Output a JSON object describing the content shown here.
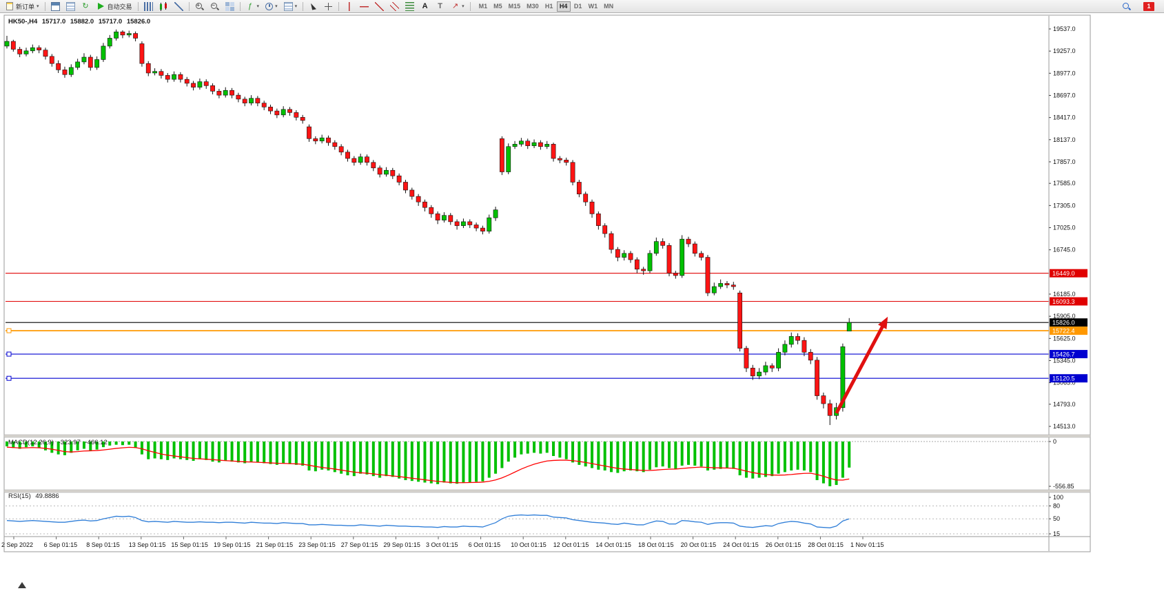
{
  "toolbar": {
    "new_order_label": "新订单",
    "autotrading_label": "自动交易",
    "timeframes": [
      "M1",
      "M5",
      "M15",
      "M30",
      "H1",
      "H4",
      "D1",
      "W1",
      "MN"
    ],
    "active_timeframe": "H4",
    "notification_count": "1"
  },
  "icons": {
    "refresh_glyph": "↻",
    "function_glyph": "ƒ",
    "text_glyph": "A",
    "label_glyph": "T",
    "arrows_glyph": "↗",
    "caret_glyph": "▾",
    "zoom_in_sign": "+",
    "zoom_out_sign": "−"
  },
  "chart": {
    "symbol_period": "HK50-,H4",
    "open": "15717.0",
    "high": "15882.0",
    "low": "15717.0",
    "close": "15826.0"
  },
  "indicators": {
    "macd_name": "MACD(12,26,9)",
    "macd_value": "-323.97",
    "macd_signal_value": "-466.12",
    "rsi_name": "RSI(15)",
    "rsi_value": "49.8886"
  },
  "axes": {
    "price_ticks": [
      19537.0,
      19257.0,
      18977.0,
      18697.0,
      18417.0,
      18137.0,
      17857.0,
      17585.0,
      17305.0,
      17025.0,
      16745.0,
      16185.0,
      15905.0,
      15625.0,
      15345.0,
      15065.0,
      14793.0,
      14513.0
    ],
    "macd_ticks": [
      0,
      -556.85
    ],
    "rsi_ticks": [
      100,
      80,
      50,
      15
    ],
    "time_labels": [
      "2 Sep 2022",
      "6 Sep 01:15",
      "8 Sep 01:15",
      "13 Sep 01:15",
      "15 Sep 01:15",
      "19 Sep 01:15",
      "21 Sep 01:15",
      "23 Sep 01:15",
      "27 Sep 01:15",
      "29 Sep 01:15",
      "3 Oct 01:15",
      "6 Oct 01:15",
      "10 Oct 01:15",
      "12 Oct 01:15",
      "14 Oct 01:15",
      "18 Oct 01:15",
      "20 Oct 01:15",
      "24 Oct 01:15",
      "26 Oct 01:15",
      "28 Oct 01:15",
      "1 Nov 01:15"
    ]
  },
  "levels": [
    {
      "value": 16449.0,
      "label": "16449.0",
      "color": "#e00000"
    },
    {
      "value": 16093.3,
      "label": "16093.3",
      "color": "#e00000"
    },
    {
      "value": 15826.0,
      "label": "15826.0",
      "color": "#000000"
    },
    {
      "value": 15722.4,
      "label": "15722.4",
      "color": "#ff9800"
    },
    {
      "value": 15426.7,
      "label": "15426.7",
      "color": "#0000d0"
    },
    {
      "value": 15120.5,
      "label": "15120.5",
      "color": "#0000d0"
    }
  ],
  "colors": {
    "bull": "#00c000",
    "bear": "#ff1414",
    "wick": "#111111",
    "macd_hist": "#00c000",
    "macd_signal": "#ff0000",
    "rsi_line": "#2f7ed8",
    "level_red": "#e00000",
    "level_blue": "#0000d0",
    "level_orange": "#ff9800",
    "arrow": "#e01010"
  },
  "chart_data": {
    "type": "candlestick",
    "symbol": "HK50-",
    "period": "H4",
    "price_range": [
      14513.0,
      19537.0
    ],
    "candles_ohlc": [
      [
        19320,
        19450,
        19290,
        19380
      ],
      [
        19380,
        19400,
        19250,
        19280
      ],
      [
        19280,
        19310,
        19180,
        19220
      ],
      [
        19220,
        19300,
        19190,
        19260
      ],
      [
        19260,
        19340,
        19230,
        19300
      ],
      [
        19300,
        19330,
        19230,
        19270
      ],
      [
        19270,
        19300,
        19150,
        19190
      ],
      [
        19190,
        19220,
        19060,
        19100
      ],
      [
        19100,
        19140,
        18980,
        19020
      ],
      [
        19020,
        19060,
        18920,
        18960
      ],
      [
        18960,
        19090,
        18930,
        19050
      ],
      [
        19050,
        19160,
        19020,
        19120
      ],
      [
        19120,
        19230,
        19090,
        19180
      ],
      [
        19180,
        19210,
        19010,
        19050
      ],
      [
        19050,
        19190,
        19020,
        19150
      ],
      [
        19150,
        19360,
        19120,
        19320
      ],
      [
        19320,
        19460,
        19290,
        19420
      ],
      [
        19420,
        19530,
        19390,
        19500
      ],
      [
        19500,
        19520,
        19420,
        19460
      ],
      [
        19460,
        19515,
        19430,
        19480
      ],
      [
        19480,
        19505,
        19380,
        19420
      ],
      [
        19350,
        19380,
        19060,
        19100
      ],
      [
        19100,
        19130,
        18940,
        18980
      ],
      [
        18980,
        19040,
        18950,
        19000
      ],
      [
        19000,
        19030,
        18910,
        18950
      ],
      [
        18950,
        18980,
        18860,
        18900
      ],
      [
        18900,
        19000,
        18870,
        18960
      ],
      [
        18960,
        18990,
        18860,
        18900
      ],
      [
        18900,
        18930,
        18810,
        18850
      ],
      [
        18850,
        18880,
        18760,
        18800
      ],
      [
        18800,
        18910,
        18770,
        18870
      ],
      [
        18870,
        18900,
        18780,
        18820
      ],
      [
        18820,
        18850,
        18710,
        18750
      ],
      [
        18750,
        18780,
        18660,
        18700
      ],
      [
        18700,
        18800,
        18670,
        18760
      ],
      [
        18760,
        18790,
        18660,
        18700
      ],
      [
        18700,
        18730,
        18610,
        18650
      ],
      [
        18650,
        18680,
        18560,
        18600
      ],
      [
        18600,
        18700,
        18570,
        18660
      ],
      [
        18660,
        18690,
        18560,
        18600
      ],
      [
        18600,
        18630,
        18510,
        18550
      ],
      [
        18550,
        18580,
        18460,
        18500
      ],
      [
        18500,
        18530,
        18410,
        18450
      ],
      [
        18450,
        18560,
        18420,
        18520
      ],
      [
        18520,
        18550,
        18440,
        18480
      ],
      [
        18480,
        18510,
        18380,
        18420
      ],
      [
        18420,
        18450,
        18340,
        18380
      ],
      [
        18300,
        18330,
        18110,
        18150
      ],
      [
        18150,
        18180,
        18080,
        18120
      ],
      [
        18120,
        18200,
        18090,
        18160
      ],
      [
        18160,
        18190,
        18060,
        18100
      ],
      [
        18100,
        18130,
        18010,
        18050
      ],
      [
        18050,
        18080,
        17940,
        17980
      ],
      [
        17980,
        18010,
        17860,
        17900
      ],
      [
        17900,
        17930,
        17810,
        17850
      ],
      [
        17850,
        17960,
        17820,
        17920
      ],
      [
        17920,
        17950,
        17810,
        17850
      ],
      [
        17850,
        17880,
        17740,
        17780
      ],
      [
        17780,
        17810,
        17660,
        17700
      ],
      [
        17700,
        17790,
        17670,
        17750
      ],
      [
        17750,
        17780,
        17640,
        17680
      ],
      [
        17680,
        17710,
        17560,
        17600
      ],
      [
        17600,
        17630,
        17460,
        17500
      ],
      [
        17500,
        17530,
        17380,
        17420
      ],
      [
        17420,
        17450,
        17300,
        17350
      ],
      [
        17350,
        17380,
        17230,
        17280
      ],
      [
        17280,
        17310,
        17150,
        17200
      ],
      [
        17200,
        17230,
        17070,
        17120
      ],
      [
        17120,
        17220,
        17090,
        17180
      ],
      [
        17180,
        17210,
        17060,
        17100
      ],
      [
        17100,
        17130,
        17000,
        17050
      ],
      [
        17050,
        17140,
        17020,
        17100
      ],
      [
        17100,
        17130,
        17020,
        17060
      ],
      [
        17060,
        17090,
        16980,
        17020
      ],
      [
        17020,
        17050,
        16940,
        16980
      ],
      [
        16980,
        17190,
        16950,
        17150
      ],
      [
        17150,
        17290,
        17110,
        17250
      ],
      [
        18150,
        18180,
        17690,
        17730
      ],
      [
        17730,
        18090,
        17700,
        18050
      ],
      [
        18050,
        18120,
        18020,
        18080
      ],
      [
        18080,
        18160,
        18050,
        18120
      ],
      [
        18120,
        18150,
        18020,
        18060
      ],
      [
        18060,
        18140,
        18030,
        18100
      ],
      [
        18100,
        18130,
        18010,
        18050
      ],
      [
        18050,
        18120,
        18020,
        18080
      ],
      [
        18080,
        18100,
        17860,
        17900
      ],
      [
        17900,
        17930,
        17840,
        17880
      ],
      [
        17880,
        17910,
        17810,
        17850
      ],
      [
        17850,
        17880,
        17560,
        17600
      ],
      [
        17600,
        17630,
        17410,
        17450
      ],
      [
        17450,
        17480,
        17300,
        17350
      ],
      [
        17350,
        17380,
        17150,
        17200
      ],
      [
        17200,
        17230,
        17000,
        17050
      ],
      [
        17050,
        17080,
        16900,
        16950
      ],
      [
        16950,
        16980,
        16700,
        16750
      ],
      [
        16750,
        16780,
        16600,
        16650
      ],
      [
        16650,
        16740,
        16610,
        16700
      ],
      [
        16700,
        16730,
        16580,
        16620
      ],
      [
        16620,
        16650,
        16450,
        16500
      ],
      [
        16500,
        16530,
        16430,
        16480
      ],
      [
        16480,
        16740,
        16450,
        16700
      ],
      [
        16700,
        16900,
        16670,
        16850
      ],
      [
        16850,
        16890,
        16760,
        16800
      ],
      [
        16800,
        16830,
        16410,
        16450
      ],
      [
        16450,
        16480,
        16380,
        16420
      ],
      [
        16420,
        16930,
        16390,
        16880
      ],
      [
        16880,
        16910,
        16780,
        16820
      ],
      [
        16820,
        16850,
        16660,
        16700
      ],
      [
        16700,
        16730,
        16610,
        16650
      ],
      [
        16650,
        16680,
        16160,
        16200
      ],
      [
        16200,
        16330,
        16170,
        16280
      ],
      [
        16280,
        16370,
        16250,
        16320
      ],
      [
        16320,
        16350,
        16260,
        16300
      ],
      [
        16300,
        16340,
        16240,
        16280
      ],
      [
        16200,
        16230,
        15460,
        15500
      ],
      [
        15500,
        15530,
        15200,
        15250
      ],
      [
        15250,
        15290,
        15100,
        15150
      ],
      [
        15150,
        15250,
        15110,
        15200
      ],
      [
        15200,
        15330,
        15160,
        15280
      ],
      [
        15280,
        15310,
        15200,
        15250
      ],
      [
        15250,
        15500,
        15210,
        15450
      ],
      [
        15450,
        15600,
        15410,
        15550
      ],
      [
        15550,
        15700,
        15510,
        15650
      ],
      [
        15650,
        15690,
        15550,
        15600
      ],
      [
        15600,
        15640,
        15400,
        15450
      ],
      [
        15450,
        15490,
        15300,
        15350
      ],
      [
        15350,
        15390,
        14850,
        14900
      ],
      [
        14900,
        14940,
        14740,
        14800
      ],
      [
        14800,
        14850,
        14530,
        14650
      ],
      [
        14650,
        14810,
        14600,
        14750
      ],
      [
        14750,
        15560,
        14700,
        15520
      ],
      [
        15717,
        15882,
        15717,
        15826
      ]
    ],
    "macd": {
      "params": "12,26,9",
      "scale_min": -556.85,
      "histogram": [
        -60,
        -80,
        -90,
        -70,
        -60,
        -80,
        -110,
        -140,
        -160,
        -170,
        -140,
        -110,
        -90,
        -120,
        -100,
        -70,
        -50,
        -40,
        -45,
        -40,
        -80,
        -160,
        -220,
        -210,
        -220,
        -230,
        -210,
        -220,
        -230,
        -240,
        -220,
        -230,
        -250,
        -260,
        -240,
        -250,
        -260,
        -270,
        -250,
        -260,
        -270,
        -280,
        -290,
        -270,
        -280,
        -290,
        -300,
        -360,
        -370,
        -350,
        -360,
        -380,
        -400,
        -420,
        -430,
        -400,
        -410,
        -430,
        -450,
        -430,
        -440,
        -460,
        -480,
        -490,
        -500,
        -510,
        -520,
        -530,
        -510,
        -520,
        -525,
        -510,
        -505,
        -500,
        -495,
        -450,
        -400,
        -330,
        -250,
        -200,
        -160,
        -150,
        -140,
        -150,
        -140,
        -180,
        -200,
        -220,
        -260,
        -290,
        -310,
        -330,
        -350,
        -360,
        -380,
        -390,
        -370,
        -360,
        -370,
        -380,
        -350,
        -320,
        -310,
        -330,
        -340,
        -300,
        -290,
        -300,
        -310,
        -360,
        -350,
        -340,
        -330,
        -340,
        -420,
        -450,
        -460,
        -450,
        -440,
        -430,
        -400,
        -380,
        -360,
        -350,
        -360,
        -380,
        -480,
        -520,
        -556,
        -540,
        -450,
        -323.97
      ],
      "signal": [
        -70,
        -75,
        -80,
        -78,
        -75,
        -78,
        -85,
        -95,
        -110,
        -125,
        -130,
        -125,
        -118,
        -115,
        -112,
        -105,
        -95,
        -85,
        -78,
        -72,
        -75,
        -90,
        -115,
        -135,
        -155,
        -170,
        -180,
        -190,
        -200,
        -210,
        -215,
        -220,
        -225,
        -232,
        -238,
        -242,
        -248,
        -252,
        -255,
        -258,
        -262,
        -266,
        -270,
        -272,
        -275,
        -278,
        -282,
        -295,
        -310,
        -322,
        -332,
        -342,
        -355,
        -368,
        -380,
        -388,
        -394,
        -402,
        -412,
        -420,
        -428,
        -436,
        -446,
        -456,
        -466,
        -476,
        -486,
        -496,
        -502,
        -508,
        -512,
        -512,
        -510,
        -508,
        -505,
        -495,
        -478,
        -452,
        -418,
        -380,
        -342,
        -310,
        -282,
        -260,
        -242,
        -235,
        -232,
        -232,
        -238,
        -248,
        -260,
        -274,
        -290,
        -304,
        -320,
        -334,
        -342,
        -348,
        -354,
        -360,
        -360,
        -355,
        -348,
        -344,
        -342,
        -335,
        -328,
        -322,
        -318,
        -322,
        -326,
        -328,
        -330,
        -332,
        -348,
        -368,
        -386,
        -400,
        -410,
        -416,
        -418,
        -416,
        -410,
        -402,
        -396,
        -394,
        -410,
        -432,
        -458,
        -478,
        -480,
        -466.12
      ]
    },
    "rsi": {
      "period": 15,
      "levels": [
        100,
        80,
        50,
        15
      ],
      "values": [
        46,
        45,
        44,
        45,
        46,
        45,
        44,
        43,
        42,
        42,
        44,
        46,
        47,
        45,
        46,
        50,
        53,
        56,
        55,
        56,
        53,
        46,
        43,
        44,
        43,
        42,
        44,
        43,
        42,
        42,
        43,
        42,
        42,
        41,
        42,
        42,
        41,
        40,
        42,
        41,
        40,
        40,
        39,
        41,
        40,
        39,
        39,
        36,
        36,
        37,
        36,
        35,
        35,
        34,
        34,
        36,
        35,
        34,
        33,
        35,
        34,
        33,
        33,
        32,
        32,
        31,
        31,
        30,
        32,
        31,
        31,
        33,
        32,
        32,
        31,
        36,
        41,
        50,
        56,
        58,
        59,
        58,
        59,
        58,
        58,
        54,
        53,
        52,
        48,
        46,
        44,
        42,
        41,
        40,
        38,
        37,
        40,
        38,
        36,
        36,
        41,
        45,
        44,
        38,
        38,
        46,
        45,
        43,
        42,
        37,
        40,
        41,
        41,
        40,
        33,
        31,
        30,
        32,
        34,
        33,
        39,
        42,
        44,
        43,
        40,
        38,
        31,
        30,
        29,
        33,
        45,
        49.8886
      ]
    },
    "annotation_arrow": {
      "from_bar": 129,
      "from_price": 14680,
      "to_bar": 137,
      "to_price": 15900,
      "color": "#e01010"
    }
  }
}
